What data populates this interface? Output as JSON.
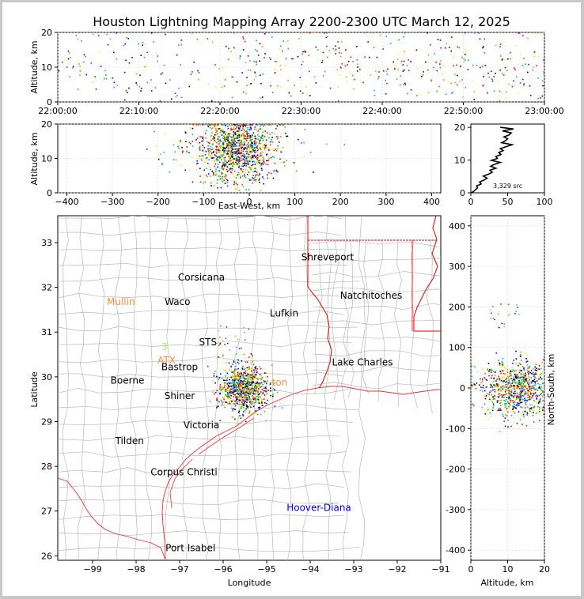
{
  "chart_data": [
    {
      "id": "time_altitude",
      "type": "scatter",
      "title": "Houston Lightning Mapping Array 2200-2300 UTC March 12, 2025",
      "xlabel": "",
      "ylabel": "Altitude, km",
      "x_ticks": [
        "22:00:00",
        "22:10:00",
        "22:20:00",
        "22:30:00",
        "22:40:00",
        "22:50:00",
        "23:00:00"
      ],
      "x_range_min": [
        0,
        60
      ],
      "y_ticks": [
        0,
        10,
        20
      ],
      "ylim": [
        0,
        20
      ],
      "colormap": [
        "#0000ff",
        "#00a0ff",
        "#00cc00",
        "#ffee00",
        "#ff8800",
        "#ff0000",
        "#000000"
      ],
      "point_density": "sparse, increasing after 22:20",
      "dense_window_min": [
        20,
        60
      ]
    },
    {
      "id": "ew_altitude",
      "type": "scatter",
      "xlabel": "East-West, km",
      "ylabel": "Altitude, km",
      "x_ticks": [
        -400,
        -300,
        -200,
        -100,
        0,
        100,
        200,
        300,
        400
      ],
      "xlim": [
        -420,
        420
      ],
      "y_ticks": [
        0,
        10,
        20
      ],
      "ylim": [
        0,
        20
      ],
      "cluster_center_km": -30,
      "cluster_spread_km": 40
    },
    {
      "id": "altitude_histogram",
      "type": "line",
      "x_ticks": [
        0,
        50,
        100
      ],
      "xlim": [
        0,
        100
      ],
      "y_ticks": [
        0,
        10,
        20
      ],
      "ylim": [
        0,
        21
      ],
      "annotation": "3,329 src",
      "profile": [
        {
          "alt": 0.3,
          "count": 3
        },
        {
          "alt": 0.9,
          "count": 6
        },
        {
          "alt": 1.5,
          "count": 9
        },
        {
          "alt": 2.1,
          "count": 8
        },
        {
          "alt": 2.7,
          "count": 14
        },
        {
          "alt": 3.3,
          "count": 12
        },
        {
          "alt": 3.9,
          "count": 18
        },
        {
          "alt": 4.5,
          "count": 22
        },
        {
          "alt": 5.1,
          "count": 17
        },
        {
          "alt": 5.7,
          "count": 24
        },
        {
          "alt": 6.3,
          "count": 29
        },
        {
          "alt": 6.9,
          "count": 26
        },
        {
          "alt": 7.5,
          "count": 34
        },
        {
          "alt": 8.1,
          "count": 27
        },
        {
          "alt": 8.7,
          "count": 32
        },
        {
          "alt": 9.3,
          "count": 40
        },
        {
          "alt": 9.9,
          "count": 28
        },
        {
          "alt": 10.5,
          "count": 36
        },
        {
          "alt": 11.1,
          "count": 34
        },
        {
          "alt": 11.7,
          "count": 41
        },
        {
          "alt": 12.3,
          "count": 38
        },
        {
          "alt": 12.9,
          "count": 44
        },
        {
          "alt": 13.5,
          "count": 40
        },
        {
          "alt": 14.1,
          "count": 48
        },
        {
          "alt": 14.7,
          "count": 56
        },
        {
          "alt": 15.3,
          "count": 42
        },
        {
          "alt": 15.9,
          "count": 47
        },
        {
          "alt": 16.5,
          "count": 50
        },
        {
          "alt": 17.1,
          "count": 45
        },
        {
          "alt": 17.7,
          "count": 52
        },
        {
          "alt": 18.3,
          "count": 55
        },
        {
          "alt": 18.9,
          "count": 43
        },
        {
          "alt": 19.5,
          "count": 58
        },
        {
          "alt": 20.0,
          "count": 40
        }
      ]
    },
    {
      "id": "plan_view_map",
      "type": "scatter",
      "xlabel": "Longitude",
      "ylabel": "Latitude",
      "x_ticks": [
        -99,
        -98,
        -97,
        -96,
        -95,
        -94,
        -93,
        -92,
        -91
      ],
      "xlim": [
        -99.8,
        -91
      ],
      "y_ticks": [
        26,
        27,
        28,
        29,
        30,
        31,
        32,
        33
      ],
      "ylim": [
        25.9,
        33.6
      ],
      "cluster_center": {
        "lon": -95.55,
        "lat": 29.75
      },
      "stations": [
        {
          "name": "Shreveport",
          "lon": -93.6,
          "lat": 32.6,
          "color": "#000000"
        },
        {
          "name": "Corsicana",
          "lon": -96.5,
          "lat": 32.15,
          "color": "#000000"
        },
        {
          "name": "Natchitoches",
          "lon": -92.6,
          "lat": 31.75,
          "color": "#000000"
        },
        {
          "name": "Mullin",
          "lon": -98.35,
          "lat": 31.6,
          "color": "#ff8c3c"
        },
        {
          "name": "Waco",
          "lon": -97.05,
          "lat": 31.6,
          "color": "#000000"
        },
        {
          "name": "Lufkin",
          "lon": -94.6,
          "lat": 31.35,
          "color": "#000000"
        },
        {
          "name": "ATX",
          "lon": -97.3,
          "lat": 30.3,
          "color": "#ff8c3c"
        },
        {
          "name": "Lake Charles",
          "lon": -92.8,
          "lat": 30.25,
          "color": "#000000"
        },
        {
          "name": "Bastrop",
          "lon": -97.0,
          "lat": 30.15,
          "color": "#000000"
        },
        {
          "name": "Boerne",
          "lon": -98.2,
          "lat": 29.85,
          "color": "#000000"
        },
        {
          "name": "Shiner",
          "lon": -97.0,
          "lat": 29.5,
          "color": "#000000"
        },
        {
          "name": "Victoria",
          "lon": -96.5,
          "lat": 28.85,
          "color": "#000000"
        },
        {
          "name": "Tilden",
          "lon": -98.15,
          "lat": 28.5,
          "color": "#000000"
        },
        {
          "name": "Corpus Christi",
          "lon": -96.9,
          "lat": 27.8,
          "color": "#000000"
        },
        {
          "name": "Hoover-Diana",
          "lon": -93.8,
          "lat": 27.0,
          "color": "#0000dd"
        },
        {
          "name": "Port Isabel",
          "lon": -96.75,
          "lat": 26.1,
          "color": "#000000"
        }
      ],
      "partial_labels": [
        {
          "text": "STS",
          "lon": -96.35,
          "lat": 30.7,
          "color": "#000000"
        },
        {
          "text": "ton",
          "lon": -94.7,
          "lat": 29.8,
          "color": "#ff8c3c"
        },
        {
          "text": "3",
          "lon": -97.35,
          "lat": 30.6,
          "color": "#88ff44"
        }
      ]
    },
    {
      "id": "altitude_ns",
      "type": "scatter",
      "xlabel": "Altitude, km",
      "ylabel": "North-South, km",
      "x_ticks": [
        0,
        10,
        20
      ],
      "xlim": [
        0,
        20
      ],
      "y_ticks": [
        -400,
        -300,
        -200,
        -100,
        0,
        100,
        200,
        300,
        400
      ],
      "ylim": [
        -425,
        425
      ],
      "cluster_center_km": 0,
      "cluster_spread_km": 35
    }
  ]
}
